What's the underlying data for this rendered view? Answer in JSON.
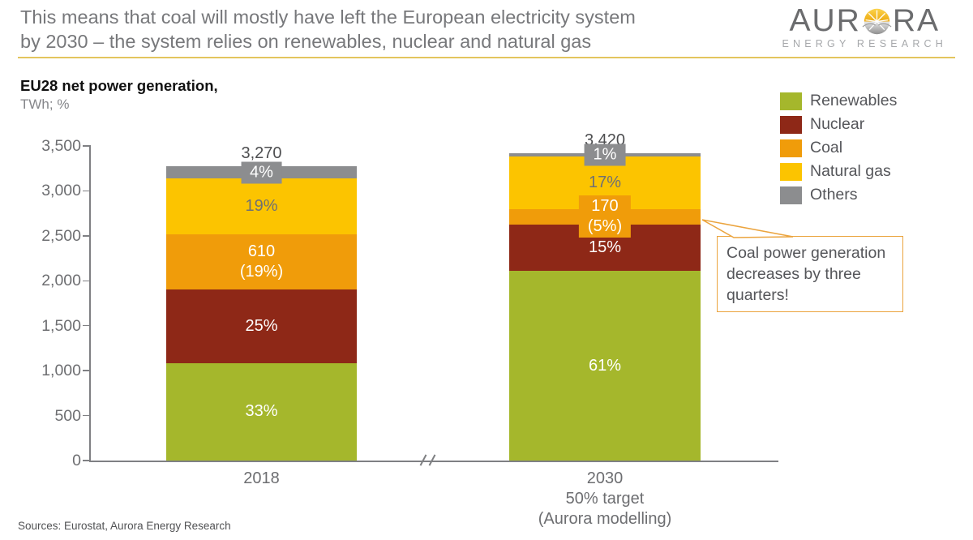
{
  "header": {
    "title_line1": "This means that coal will mostly have left the European electricity system",
    "title_line2": "by 2030 – the system relies on renewables, nuclear and natural gas",
    "logo": {
      "word_pre": "AUR",
      "word_post": "RA",
      "subtitle": "ENERGY RESEARCH"
    },
    "rule_color": "#e3c55e"
  },
  "chart": {
    "heading": "EU28 net power generation,",
    "unit": "TWh; %"
  },
  "legend": {
    "items": [
      {
        "label": "Renewables",
        "color": "#a5b72c"
      },
      {
        "label": "Nuclear",
        "color": "#8e2817"
      },
      {
        "label": "Coal",
        "color": "#f09c0a"
      },
      {
        "label": "Natural gas",
        "color": "#fcc400"
      },
      {
        "label": "Others",
        "color": "#8c8d8f"
      }
    ]
  },
  "footer": {
    "sources": "Sources: Eurostat, Aurora Energy Research"
  },
  "chart_data": {
    "type": "bar",
    "stacked": true,
    "title": "EU28 net power generation,",
    "unit_label": "TWh; %",
    "ylim": [
      0,
      3500
    ],
    "ytick_interval": 500,
    "ytick_labels": [
      "0",
      "500",
      "1,000",
      "1,500",
      "2,000",
      "2,500",
      "3,000",
      "3,500"
    ],
    "grid": false,
    "legend_position": "top-right",
    "axis_break_between_bars": true,
    "series_colors": {
      "Renewables": "#a5b72c",
      "Nuclear": "#8e2817",
      "Coal": "#f09c0a",
      "Natural gas": "#fcc400",
      "Others": "#8c8d8f"
    },
    "bars": [
      {
        "category_lines": [
          "2018"
        ],
        "total_twh": 3270,
        "total_label": "3,270",
        "segments": [
          {
            "series": "Renewables",
            "pct": 33,
            "twh": 1079,
            "label": "33%",
            "label_color": "white",
            "badge": false
          },
          {
            "series": "Nuclear",
            "pct": 25,
            "twh": 818,
            "label": "25%",
            "label_color": "white",
            "badge": false
          },
          {
            "series": "Coal",
            "pct": 19,
            "twh": 610,
            "label": "610\n(19%)",
            "label_color": "white",
            "badge": false
          },
          {
            "series": "Natural gas",
            "pct": 19,
            "twh": 621,
            "label": "19%",
            "label_color": "gray",
            "badge": false
          },
          {
            "series": "Others",
            "pct": 4,
            "twh": 131,
            "label": "4%",
            "label_color": "white",
            "badge": true
          }
        ]
      },
      {
        "category_lines": [
          "2030",
          "50% target",
          "(Aurora modelling)"
        ],
        "total_twh": 3420,
        "total_label": "3,420",
        "segments": [
          {
            "series": "Renewables",
            "pct": 61,
            "twh": 2086,
            "label": "61%",
            "label_color": "white",
            "badge": false
          },
          {
            "series": "Nuclear",
            "pct": 15,
            "twh": 513,
            "label": "15%",
            "label_color": "white",
            "badge": false
          },
          {
            "series": "Coal",
            "pct": 5,
            "twh": 170,
            "label": "170\n(5%)",
            "label_color": "white",
            "badge": true
          },
          {
            "series": "Natural gas",
            "pct": 17,
            "twh": 581,
            "label": "17%",
            "label_color": "gray",
            "badge": false
          },
          {
            "series": "Others",
            "pct": 1,
            "twh": 34,
            "label": "1%",
            "label_color": "white",
            "badge": true
          }
        ]
      }
    ],
    "annotation": {
      "text": "Coal power generation decreases by three quarters!",
      "target": "2030 Coal segment",
      "border_color": "#eba43e"
    }
  }
}
